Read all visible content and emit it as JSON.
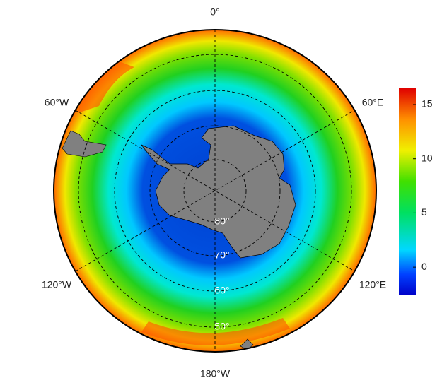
{
  "map": {
    "lon_labels": [
      "0°",
      "60°E",
      "120°E",
      "180°W",
      "120°W",
      "60°W"
    ],
    "lat_labels": [
      "80°",
      "70°",
      "60°",
      "50°"
    ],
    "colorbar": {
      "lim": [
        -2.6,
        16.5
      ],
      "ticks": [
        0,
        5,
        10,
        15
      ]
    }
  }
}
